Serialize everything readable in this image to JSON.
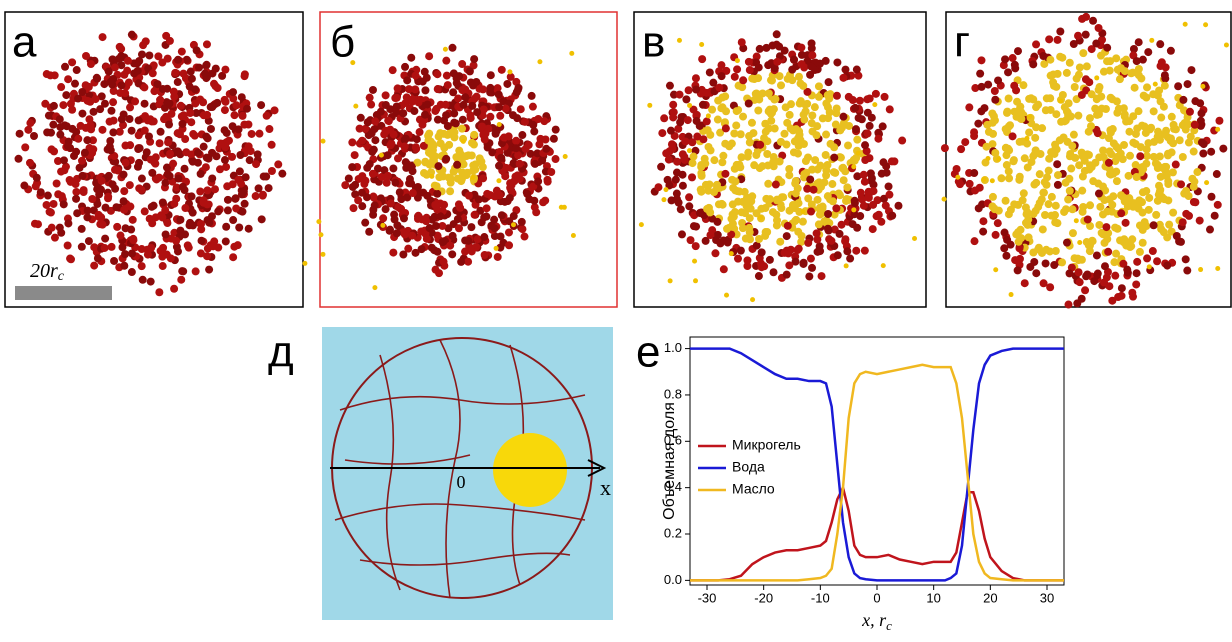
{
  "panels": {
    "labels": [
      "а",
      "б",
      "в",
      "г",
      "д",
      "е"
    ],
    "scale_bar": {
      "text": "20r",
      "sub": "c"
    },
    "diagram": {
      "origin": "0",
      "axis": "x"
    }
  },
  "chart_data": {
    "type": "line",
    "ylabel": "Объемная доля",
    "xlabel": {
      "text": "x, r",
      "sub": "c"
    },
    "xlim": [
      -33,
      33
    ],
    "ylim": [
      -0.02,
      1.05
    ],
    "xticks": [
      -30,
      -20,
      -10,
      0,
      10,
      20,
      30
    ],
    "yticks": [
      {
        "value": 0,
        "label": "0.0"
      },
      {
        "value": 0.2,
        "label": "0.2"
      },
      {
        "value": 0.4,
        "label": "0.4"
      },
      {
        "value": 0.6,
        "label": "0.6"
      },
      {
        "value": 0.8,
        "label": "0.8"
      },
      {
        "value": 1,
        "label": "1.0"
      }
    ],
    "x": [
      -33,
      -30,
      -28,
      -26,
      -24,
      -22,
      -20,
      -18,
      -16,
      -14,
      -12,
      -10,
      -9,
      -8,
      -7,
      -6,
      -5,
      -4,
      -3,
      -2,
      0,
      2,
      4,
      6,
      8,
      10,
      12,
      13,
      14,
      15,
      16,
      17,
      18,
      19,
      20,
      22,
      24,
      26,
      28,
      30,
      33
    ],
    "series": [
      {
        "name": "Микрогель",
        "color": "#c0141c",
        "values": [
          0,
          0,
          0,
          0.005,
          0.02,
          0.07,
          0.1,
          0.12,
          0.13,
          0.13,
          0.14,
          0.15,
          0.17,
          0.25,
          0.35,
          0.4,
          0.3,
          0.15,
          0.11,
          0.1,
          0.1,
          0.11,
          0.09,
          0.08,
          0.07,
          0.08,
          0.08,
          0.08,
          0.12,
          0.25,
          0.38,
          0.38,
          0.3,
          0.18,
          0.1,
          0.04,
          0.01,
          0,
          0,
          0,
          0
        ]
      },
      {
        "name": "Вода",
        "color": "#1a1ad6",
        "values": [
          1,
          1,
          1,
          1,
          0.98,
          0.95,
          0.92,
          0.89,
          0.87,
          0.87,
          0.86,
          0.86,
          0.85,
          0.75,
          0.5,
          0.25,
          0.1,
          0.03,
          0.01,
          0.005,
          0,
          0,
          0,
          0,
          0,
          0,
          0,
          0.01,
          0.03,
          0.15,
          0.4,
          0.65,
          0.85,
          0.93,
          0.97,
          0.99,
          1,
          1,
          1,
          1,
          1
        ]
      },
      {
        "name": "Масло",
        "color": "#f0b820",
        "values": [
          0,
          0,
          0,
          0,
          0,
          0,
          0,
          0,
          0,
          0,
          0.005,
          0.01,
          0.02,
          0.05,
          0.2,
          0.4,
          0.7,
          0.85,
          0.89,
          0.9,
          0.89,
          0.9,
          0.91,
          0.92,
          0.93,
          0.92,
          0.92,
          0.92,
          0.85,
          0.7,
          0.45,
          0.2,
          0.08,
          0.03,
          0.01,
          0.005,
          0,
          0,
          0,
          0,
          0
        ]
      }
    ]
  }
}
